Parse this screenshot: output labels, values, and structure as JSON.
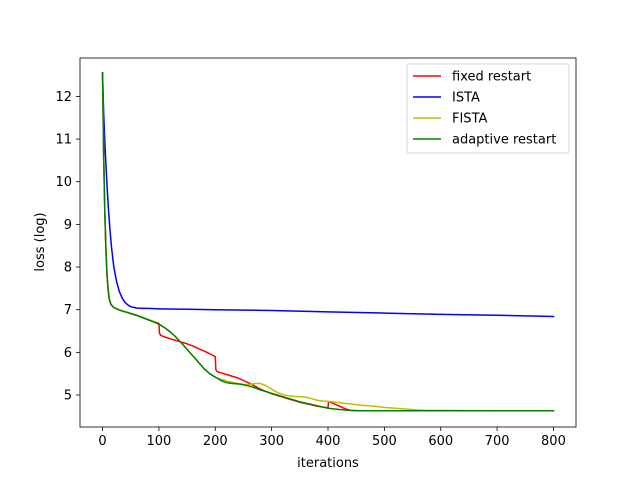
{
  "chart_data": {
    "type": "line",
    "title": "",
    "xlabel": "iterations",
    "ylabel": "loss (log)",
    "xlim": [
      -40,
      840
    ],
    "ylim": [
      4.25,
      12.9
    ],
    "xticks": [
      0,
      100,
      200,
      300,
      400,
      500,
      600,
      700,
      800
    ],
    "xtick_labels": [
      "0",
      "100",
      "200",
      "300",
      "400",
      "500",
      "600",
      "700",
      "800"
    ],
    "yticks": [
      5,
      6,
      7,
      8,
      9,
      10,
      11,
      12
    ],
    "ytick_labels": [
      "5",
      "6",
      "7",
      "8",
      "9",
      "10",
      "11",
      "12"
    ],
    "grid": false,
    "legend_position": "top-right",
    "series": [
      {
        "name": "fixed restart",
        "color": "#ff0000",
        "x": [
          0,
          2,
          4,
          6,
          8,
          10,
          12,
          15,
          20,
          30,
          40,
          50,
          60,
          70,
          80,
          90,
          100,
          101,
          103,
          110,
          120,
          130,
          140,
          150,
          160,
          170,
          180,
          190,
          200,
          201,
          203,
          210,
          220,
          230,
          240,
          250,
          260,
          270,
          280,
          290,
          300,
          310,
          320,
          330,
          340,
          350,
          360,
          370,
          380,
          390,
          400,
          401,
          403,
          410,
          420,
          430,
          440,
          450,
          500,
          600,
          700,
          800
        ],
        "y": [
          12.55,
          10.6,
          9.3,
          8.4,
          7.8,
          7.45,
          7.25,
          7.12,
          7.05,
          6.99,
          6.95,
          6.91,
          6.87,
          6.82,
          6.77,
          6.72,
          6.68,
          6.45,
          6.4,
          6.36,
          6.32,
          6.28,
          6.24,
          6.2,
          6.15,
          6.09,
          6.03,
          5.97,
          5.9,
          5.6,
          5.55,
          5.52,
          5.48,
          5.44,
          5.4,
          5.34,
          5.28,
          5.21,
          5.14,
          5.08,
          5.03,
          4.99,
          4.95,
          4.91,
          4.87,
          4.83,
          4.8,
          4.77,
          4.74,
          4.72,
          4.7,
          4.84,
          4.84,
          4.8,
          4.74,
          4.68,
          4.64,
          4.63,
          4.63,
          4.63,
          4.63,
          4.63
        ]
      },
      {
        "name": "ISTA",
        "color": "#0000ff",
        "x": [
          0,
          2,
          4,
          6,
          8,
          10,
          13,
          16,
          20,
          25,
          30,
          35,
          40,
          45,
          50,
          60,
          70,
          80,
          100,
          150,
          200,
          300,
          400,
          500,
          600,
          700,
          800
        ],
        "y": [
          12.55,
          11.6,
          10.95,
          10.4,
          9.9,
          9.45,
          8.9,
          8.45,
          8.0,
          7.65,
          7.42,
          7.27,
          7.17,
          7.11,
          7.07,
          7.04,
          7.03,
          7.03,
          7.02,
          7.01,
          7.0,
          6.98,
          6.95,
          6.92,
          6.89,
          6.87,
          6.84
        ]
      },
      {
        "name": "FISTA",
        "color": "#bfbf00",
        "x": [
          0,
          2,
          4,
          6,
          8,
          10,
          12,
          15,
          20,
          30,
          40,
          50,
          60,
          70,
          80,
          90,
          100,
          110,
          120,
          130,
          140,
          150,
          160,
          170,
          180,
          190,
          200,
          210,
          220,
          230,
          240,
          250,
          260,
          270,
          280,
          290,
          300,
          310,
          320,
          330,
          340,
          350,
          360,
          370,
          380,
          390,
          400,
          420,
          440,
          460,
          480,
          500,
          520,
          540,
          560,
          580,
          600,
          700,
          800
        ],
        "y": [
          12.55,
          10.6,
          9.3,
          8.4,
          7.8,
          7.45,
          7.25,
          7.12,
          7.05,
          6.99,
          6.95,
          6.91,
          6.87,
          6.82,
          6.77,
          6.72,
          6.66,
          6.58,
          6.48,
          6.36,
          6.22,
          6.07,
          5.92,
          5.77,
          5.62,
          5.5,
          5.42,
          5.37,
          5.33,
          5.3,
          5.27,
          5.25,
          5.24,
          5.27,
          5.27,
          5.22,
          5.14,
          5.06,
          5.01,
          4.98,
          4.97,
          4.96,
          4.95,
          4.92,
          4.88,
          4.86,
          4.85,
          4.82,
          4.79,
          4.76,
          4.74,
          4.71,
          4.69,
          4.67,
          4.65,
          4.64,
          4.64,
          4.63,
          4.63
        ]
      },
      {
        "name": "adaptive restart",
        "color": "#008000",
        "x": [
          0,
          2,
          4,
          6,
          8,
          10,
          12,
          15,
          20,
          30,
          40,
          50,
          60,
          70,
          80,
          90,
          100,
          110,
          120,
          130,
          140,
          150,
          160,
          170,
          180,
          190,
          200,
          210,
          220,
          230,
          240,
          250,
          260,
          270,
          280,
          290,
          300,
          310,
          320,
          330,
          340,
          350,
          360,
          370,
          380,
          390,
          400,
          420,
          440,
          460,
          500,
          600,
          700,
          800
        ],
        "y": [
          12.55,
          10.6,
          9.3,
          8.4,
          7.8,
          7.45,
          7.25,
          7.12,
          7.05,
          6.99,
          6.95,
          6.91,
          6.87,
          6.82,
          6.77,
          6.72,
          6.66,
          6.58,
          6.48,
          6.36,
          6.22,
          6.07,
          5.92,
          5.77,
          5.62,
          5.5,
          5.42,
          5.34,
          5.29,
          5.27,
          5.26,
          5.24,
          5.21,
          5.17,
          5.12,
          5.08,
          5.04,
          5.0,
          4.96,
          4.92,
          4.88,
          4.84,
          4.81,
          4.78,
          4.75,
          4.72,
          4.69,
          4.66,
          4.64,
          4.63,
          4.63,
          4.63,
          4.63,
          4.63
        ]
      }
    ]
  }
}
